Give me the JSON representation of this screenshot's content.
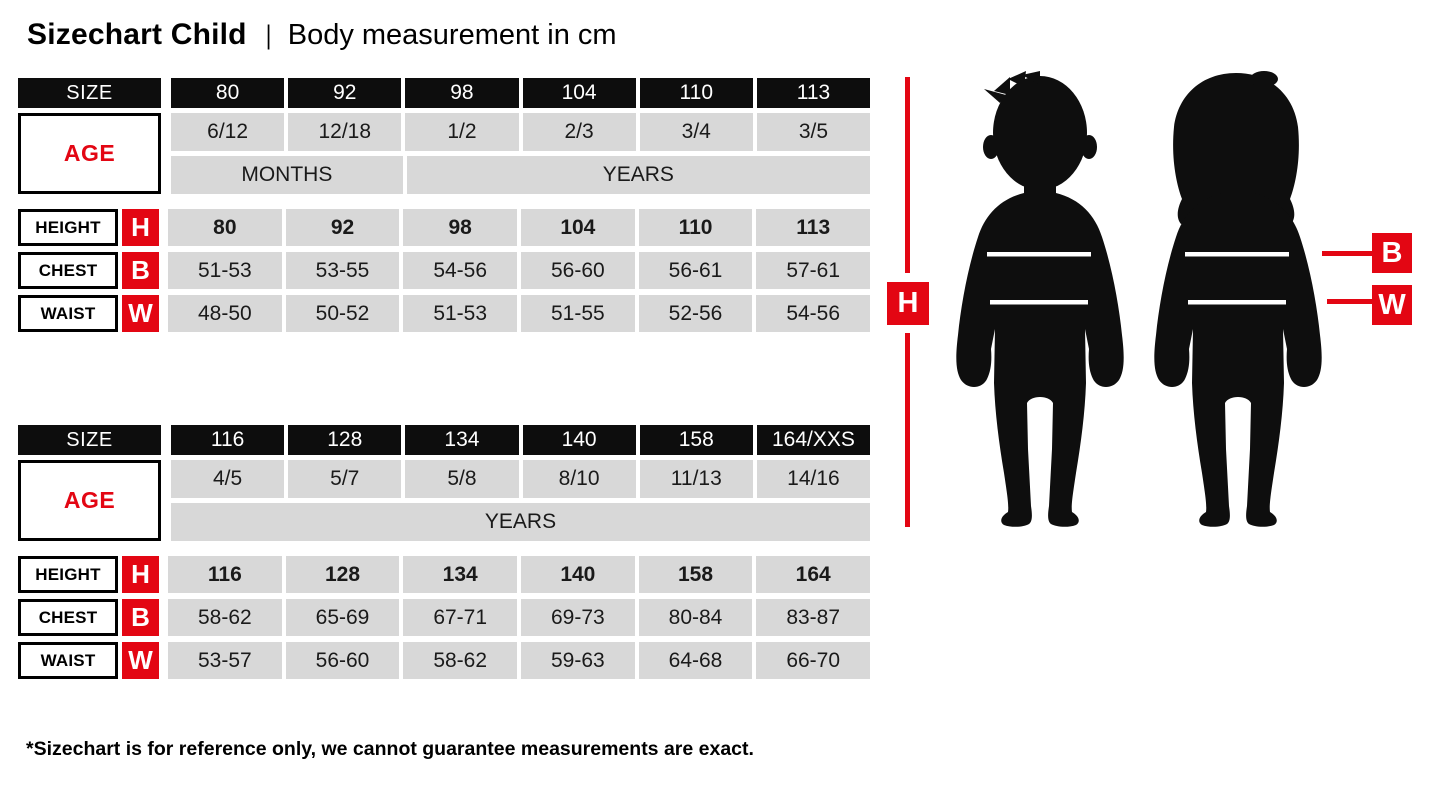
{
  "header": {
    "title_bold": "Sizechart Child",
    "separator": "|",
    "subtitle": "Body measurement in cm"
  },
  "labels": {
    "size": "SIZE",
    "age": "AGE",
    "height": "HEIGHT",
    "chest": "CHEST",
    "waist": "WAIST",
    "h": "H",
    "b": "B",
    "w": "W"
  },
  "colors": {
    "accent_red": "#e30613",
    "cell_gray": "#d8d8d8",
    "cell_black": "#0d0d0d"
  },
  "tables": [
    {
      "sizes": [
        "80",
        "92",
        "98",
        "104",
        "110",
        "113"
      ],
      "ages": [
        "6/12",
        "12/18",
        "1/2",
        "2/3",
        "3/4",
        "3/5"
      ],
      "age_scales": [
        {
          "label": "MONTHS",
          "span": 2
        },
        {
          "label": "YEARS",
          "span": 4
        }
      ],
      "height": [
        "80",
        "92",
        "98",
        "104",
        "110",
        "113"
      ],
      "chest": [
        "51-53",
        "53-55",
        "54-56",
        "56-60",
        "56-61",
        "57-61"
      ],
      "waist": [
        "48-50",
        "50-52",
        "51-53",
        "51-55",
        "52-56",
        "54-56"
      ]
    },
    {
      "sizes": [
        "116",
        "128",
        "134",
        "140",
        "158",
        "164/XXS"
      ],
      "ages": [
        "4/5",
        "5/7",
        "5/8",
        "8/10",
        "11/13",
        "14/16"
      ],
      "age_scales": [
        {
          "label": "YEARS",
          "span": 6
        }
      ],
      "height": [
        "116",
        "128",
        "134",
        "140",
        "158",
        "164"
      ],
      "chest": [
        "58-62",
        "65-69",
        "67-71",
        "69-73",
        "80-84",
        "83-87"
      ],
      "waist": [
        "53-57",
        "56-60",
        "58-62",
        "59-63",
        "64-68",
        "66-70"
      ]
    }
  ],
  "figure": {
    "height_marker": "H",
    "chest_marker": "B",
    "waist_marker": "W"
  },
  "footnote": "*Sizechart is for reference only, we cannot guarantee measurements are exact."
}
